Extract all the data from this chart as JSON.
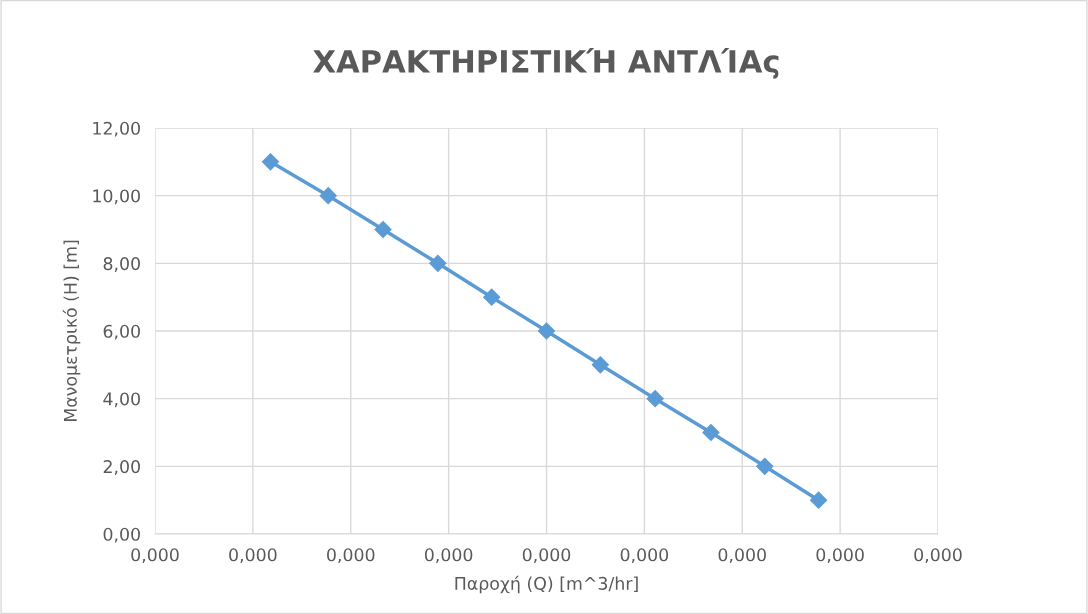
{
  "chart_data": {
    "type": "line",
    "title": "ΧΑΡΑΚΤΗΡΙΣΤΙΚΉ ΑΝΤΛΊΑς",
    "xlabel": "Παροχή (Q) [m^3/hr]",
    "ylabel": "Μανομετρικό (H) [m]",
    "x": [
      5.9e-05,
      8.85e-05,
      0.0001165,
      0.0001445,
      0.000172,
      0.0002,
      0.0002275,
      0.0002555,
      0.000284,
      0.0003115,
      0.000339
    ],
    "series": [
      {
        "color": "#5b9bd5",
        "values": [
          11,
          10,
          9,
          8,
          7,
          6,
          5,
          4,
          3,
          2,
          1
        ]
      }
    ],
    "xlim": [
      0,
      0.0004
    ],
    "xticks": [
      {
        "value": 0,
        "label": "0,000"
      },
      {
        "value": 5e-05,
        "label": "0,000"
      },
      {
        "value": 0.0001,
        "label": "0,000"
      },
      {
        "value": 0.00015,
        "label": "0,000"
      },
      {
        "value": 0.0002,
        "label": "0,000"
      },
      {
        "value": 0.00025,
        "label": "0,000"
      },
      {
        "value": 0.0003,
        "label": "0,000"
      },
      {
        "value": 0.00035,
        "label": "0,000"
      },
      {
        "value": 0.0004,
        "label": "0,000"
      }
    ],
    "ylim": [
      0,
      12
    ],
    "yticks": [
      {
        "value": 0,
        "label": "0,00"
      },
      {
        "value": 2,
        "label": "2,00"
      },
      {
        "value": 4,
        "label": "4,00"
      },
      {
        "value": 6,
        "label": "6,00"
      },
      {
        "value": 8,
        "label": "8,00"
      },
      {
        "value": 10,
        "label": "10,00"
      },
      {
        "value": 12,
        "label": "12,00"
      }
    ],
    "grid": true,
    "marker": "diamond",
    "line_style": "solid",
    "legend": false
  }
}
